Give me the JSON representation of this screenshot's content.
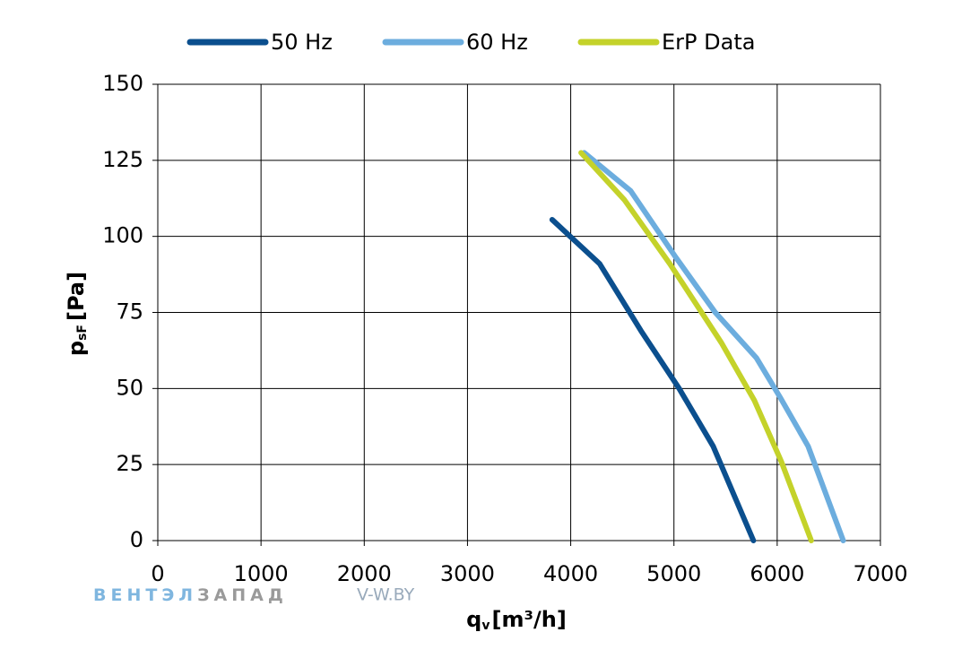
{
  "chart_data": {
    "type": "line",
    "x_label": {
      "main": "q",
      "sub": "v",
      "unit": "[m³/h]"
    },
    "y_label": {
      "main": "p",
      "sub": "sF",
      "unit": "[Pa]"
    },
    "series": [
      {
        "name": "50 Hz",
        "color": "#0b4f8e",
        "x": [
          3820,
          4280,
          4680,
          5050,
          5380,
          5770
        ],
        "values": [
          105.5,
          91,
          69,
          50,
          31,
          0
        ]
      },
      {
        "name": "60 Hz",
        "color": "#6cadde",
        "x": [
          4130,
          4580,
          5020,
          5400,
          5800,
          6030,
          6300,
          6640
        ],
        "values": [
          127.5,
          115,
          93,
          75,
          60,
          47,
          31,
          0
        ]
      },
      {
        "name": "ErP Data",
        "color": "#c4d22a",
        "x": [
          4100,
          4520,
          4960,
          5460,
          5780,
          6040,
          6330
        ],
        "values": [
          127.5,
          112,
          91,
          65,
          46,
          26,
          0
        ]
      }
    ],
    "xlim": [
      0,
      7000
    ],
    "xticks": [
      0,
      1000,
      2000,
      3000,
      4000,
      5000,
      6000,
      7000
    ],
    "ylim": [
      0,
      150
    ],
    "yticks": [
      0,
      25,
      50,
      75,
      100,
      125,
      150
    ],
    "grid": true,
    "legend": "top",
    "watermark": {
      "part1": "ВЕНТЭЛ",
      "part2": "ЗАПАД",
      "site": "V-W.BY"
    }
  }
}
